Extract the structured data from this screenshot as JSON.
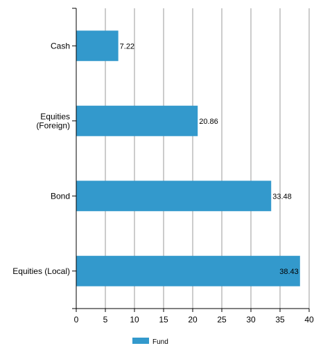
{
  "chart_data": {
    "type": "bar",
    "orientation": "horizontal",
    "categories": [
      [
        "Cash"
      ],
      [
        "Equities",
        "(Foreign)"
      ],
      [
        "Bond"
      ],
      [
        "Equities (Local)"
      ]
    ],
    "series": [
      {
        "name": "Fund",
        "values": [
          7.22,
          20.86,
          33.48,
          38.43
        ],
        "value_labels": [
          "7.22",
          "20.86",
          "33.48",
          "38.43"
        ]
      }
    ],
    "xlim": [
      0,
      40
    ],
    "xticks": [
      "0",
      "5",
      "10",
      "15",
      "20",
      "25",
      "30",
      "35",
      "40"
    ],
    "grid": "vertical",
    "legend": "bottom-center",
    "colors": {
      "bar": "#3399cc",
      "grid": "#999999",
      "axis": "#000000"
    }
  }
}
